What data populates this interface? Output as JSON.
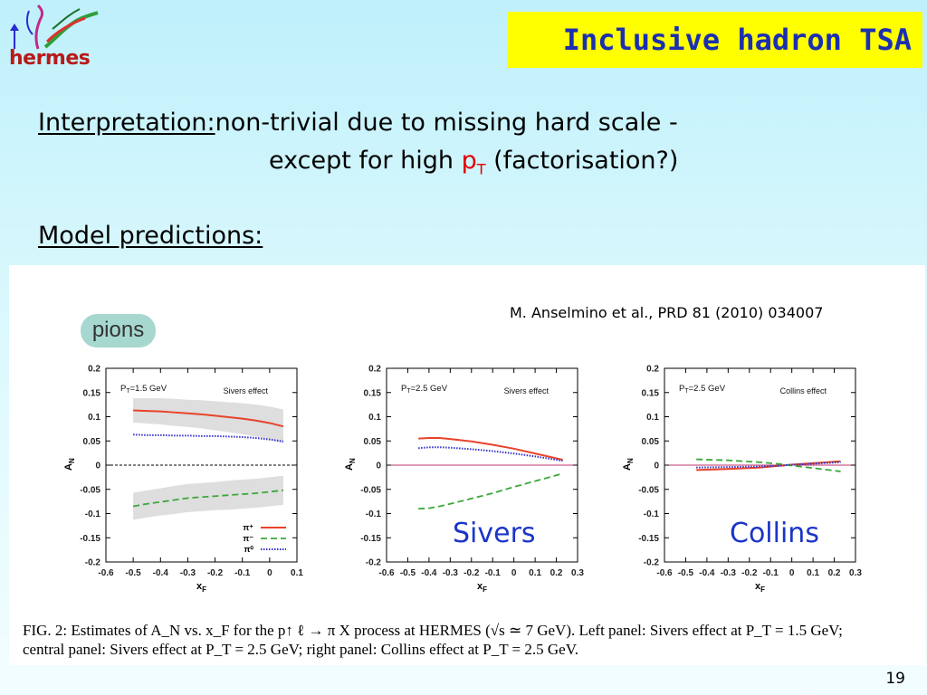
{
  "logo": {
    "text": "hermes"
  },
  "title": "Inclusive hadron TSA",
  "interpretation": {
    "label": "Interpretation:",
    "text1": "non-trivial due to missing hard scale -",
    "text2_pre": "except for high ",
    "pt": "p",
    "pt_sub": "T",
    "text2_post": " (factorisation?)"
  },
  "model_predictions": "Model predictions:",
  "citation": "M. Anselmino et al.,  PRD 81 (2010) 034007",
  "pions_label": "pions",
  "big_labels": {
    "sivers": "Sivers",
    "collins": "Collins"
  },
  "caption": {
    "line1": "FIG. 2: Estimates of A_N vs. x_F for the p↑ ℓ → π X process at HERMES (√s ≃ 7 GeV). Left panel: Sivers effect at P_T = 1.5 GeV;",
    "line2": "central panel: Sivers effect at P_T = 2.5 GeV; right panel: Collins effect at P_T = 2.5 GeV."
  },
  "page_number": "19",
  "colors": {
    "pi_plus": "#e8432a",
    "pi_minus": "#3aa83a",
    "pi_zero": "#3333cc",
    "band": "#dedede",
    "title_bg": "#ffff00",
    "title_fg": "#1b2fb0"
  },
  "chart_data": [
    {
      "type": "line",
      "panel_label": "P_T=1.5 GeV",
      "effect": "Sivers effect",
      "xlabel": "x_F",
      "ylabel": "A_N",
      "xlim": [
        -0.6,
        0.1
      ],
      "ylim": [
        -0.2,
        0.2
      ],
      "xticks": [
        -0.6,
        -0.5,
        -0.4,
        -0.3,
        -0.2,
        -0.1,
        0,
        0.1
      ],
      "yticks": [
        0.2,
        0.15,
        0.1,
        0.05,
        0,
        -0.05,
        -0.1,
        -0.15,
        -0.2
      ],
      "zero_line": "dashed-black",
      "legend": [
        "π⁺",
        "π⁻",
        "π⁰"
      ],
      "series": [
        {
          "name": "π⁺",
          "color": "#e8432a",
          "style": "solid",
          "x": [
            -0.5,
            -0.45,
            -0.4,
            -0.35,
            -0.3,
            -0.25,
            -0.2,
            -0.15,
            -0.1,
            -0.05,
            0,
            0.05
          ],
          "y": [
            0.113,
            0.112,
            0.111,
            0.109,
            0.107,
            0.105,
            0.102,
            0.099,
            0.096,
            0.092,
            0.087,
            0.08
          ],
          "band": [
            0.025,
            0.026,
            0.027,
            0.028,
            0.028,
            0.029,
            0.03,
            0.031,
            0.032,
            0.033,
            0.034,
            0.035
          ]
        },
        {
          "name": "π⁻",
          "color": "#3aa83a",
          "style": "dashed",
          "x": [
            -0.5,
            -0.45,
            -0.4,
            -0.35,
            -0.3,
            -0.25,
            -0.2,
            -0.15,
            -0.1,
            -0.05,
            0,
            0.05
          ],
          "y": [
            -0.085,
            -0.08,
            -0.076,
            -0.072,
            -0.068,
            -0.066,
            -0.064,
            -0.062,
            -0.06,
            -0.058,
            -0.055,
            -0.052
          ],
          "band": [
            0.028,
            0.028,
            0.028,
            0.029,
            0.029,
            0.029,
            0.029,
            0.03,
            0.03,
            0.03,
            0.03,
            0.03
          ]
        },
        {
          "name": "π⁰",
          "color": "#3333cc",
          "style": "dotted",
          "x": [
            -0.5,
            -0.45,
            -0.4,
            -0.35,
            -0.3,
            -0.25,
            -0.2,
            -0.15,
            -0.1,
            -0.05,
            0,
            0.05
          ],
          "y": [
            0.063,
            0.062,
            0.062,
            0.061,
            0.061,
            0.06,
            0.06,
            0.059,
            0.058,
            0.056,
            0.053,
            0.049
          ]
        }
      ]
    },
    {
      "type": "line",
      "panel_label": "P_T=2.5 GeV",
      "effect": "Sivers effect",
      "xlabel": "x_F",
      "ylabel": "A_N",
      "xlim": [
        -0.6,
        0.3
      ],
      "ylim": [
        -0.2,
        0.2
      ],
      "xticks": [
        -0.6,
        -0.5,
        -0.4,
        -0.3,
        -0.2,
        -0.1,
        0,
        0.1,
        0.2,
        0.3
      ],
      "yticks": [
        0.2,
        0.15,
        0.1,
        0.05,
        0,
        -0.05,
        -0.1,
        -0.15,
        -0.2
      ],
      "zero_line": "solid-pink",
      "series": [
        {
          "name": "π⁺",
          "color": "#e8432a",
          "style": "solid",
          "x": [
            -0.45,
            -0.4,
            -0.35,
            -0.3,
            -0.2,
            -0.1,
            0,
            0.1,
            0.2,
            0.23
          ],
          "y": [
            0.055,
            0.056,
            0.056,
            0.054,
            0.049,
            0.042,
            0.034,
            0.024,
            0.014,
            0.011
          ]
        },
        {
          "name": "π⁻",
          "color": "#3aa83a",
          "style": "dashed",
          "x": [
            -0.45,
            -0.4,
            -0.35,
            -0.3,
            -0.2,
            -0.1,
            0,
            0.1,
            0.2,
            0.23
          ],
          "y": [
            -0.09,
            -0.089,
            -0.085,
            -0.08,
            -0.069,
            -0.058,
            -0.045,
            -0.033,
            -0.021,
            -0.017
          ]
        },
        {
          "name": "π⁰",
          "color": "#3333cc",
          "style": "dotted",
          "x": [
            -0.45,
            -0.4,
            -0.35,
            -0.3,
            -0.2,
            -0.1,
            0,
            0.1,
            0.2,
            0.23
          ],
          "y": [
            0.035,
            0.037,
            0.037,
            0.036,
            0.033,
            0.029,
            0.024,
            0.018,
            0.011,
            0.009
          ]
        }
      ]
    },
    {
      "type": "line",
      "panel_label": "P_T=2.5 GeV",
      "effect": "Collins effect",
      "xlabel": "x_F",
      "ylabel": "A_N",
      "xlim": [
        -0.6,
        0.3
      ],
      "ylim": [
        -0.2,
        0.2
      ],
      "xticks": [
        -0.6,
        -0.5,
        -0.4,
        -0.3,
        -0.2,
        -0.1,
        0,
        0.1,
        0.2,
        0.3
      ],
      "yticks": [
        0.2,
        0.15,
        0.1,
        0.05,
        0,
        -0.05,
        -0.1,
        -0.15,
        -0.2
      ],
      "zero_line": "solid-pink",
      "series": [
        {
          "name": "π⁺",
          "color": "#e8432a",
          "style": "solid",
          "x": [
            -0.45,
            -0.3,
            -0.15,
            -0.05,
            0,
            0.1,
            0.23
          ],
          "y": [
            -0.01,
            -0.008,
            -0.005,
            -0.001,
            0.001,
            0.004,
            0.008
          ]
        },
        {
          "name": "π⁻",
          "color": "#3aa83a",
          "style": "dashed",
          "x": [
            -0.45,
            -0.3,
            -0.15,
            -0.05,
            0,
            0.1,
            0.23
          ],
          "y": [
            0.012,
            0.01,
            0.006,
            0.002,
            -0.001,
            -0.006,
            -0.013
          ]
        },
        {
          "name": "π⁰",
          "color": "#3333cc",
          "style": "dotted",
          "x": [
            -0.45,
            -0.3,
            -0.15,
            -0.05,
            0,
            0.1,
            0.23
          ],
          "y": [
            -0.005,
            -0.004,
            -0.003,
            -0.001,
            0.001,
            0.003,
            0.006
          ]
        }
      ]
    }
  ]
}
